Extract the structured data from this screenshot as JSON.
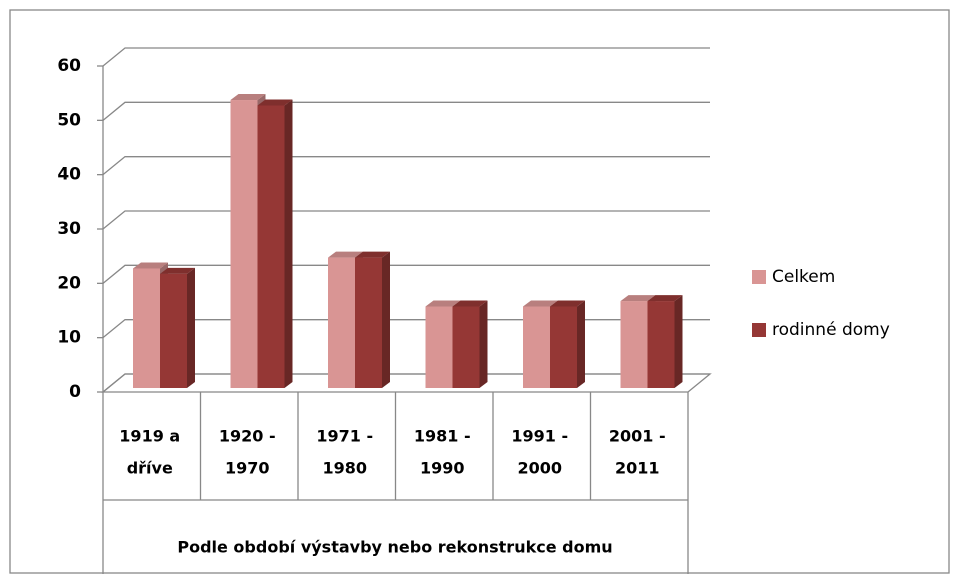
{
  "chart_data": {
    "type": "bar3d",
    "x_label": "Podle období výstavby nebo rekonstrukce domu",
    "categories": [
      [
        "1919 a",
        "dříve"
      ],
      [
        "1920 -",
        "1970"
      ],
      [
        "1971 -",
        "1980"
      ],
      [
        "1981 -",
        "1990"
      ],
      [
        "1991 -",
        "2000"
      ],
      [
        "2001 -",
        "2011"
      ]
    ],
    "series": [
      {
        "name": "Celkem",
        "color": "#d99594",
        "values": [
          22,
          53,
          24,
          15,
          15,
          16
        ]
      },
      {
        "name": "rodinné domy",
        "color": "#953735",
        "values": [
          21,
          52,
          24,
          15,
          15,
          16
        ]
      }
    ],
    "ylim": [
      0,
      60
    ],
    "yticks": [
      0,
      10,
      20,
      30,
      40,
      50,
      60
    ],
    "grid": true,
    "legend": "right"
  }
}
